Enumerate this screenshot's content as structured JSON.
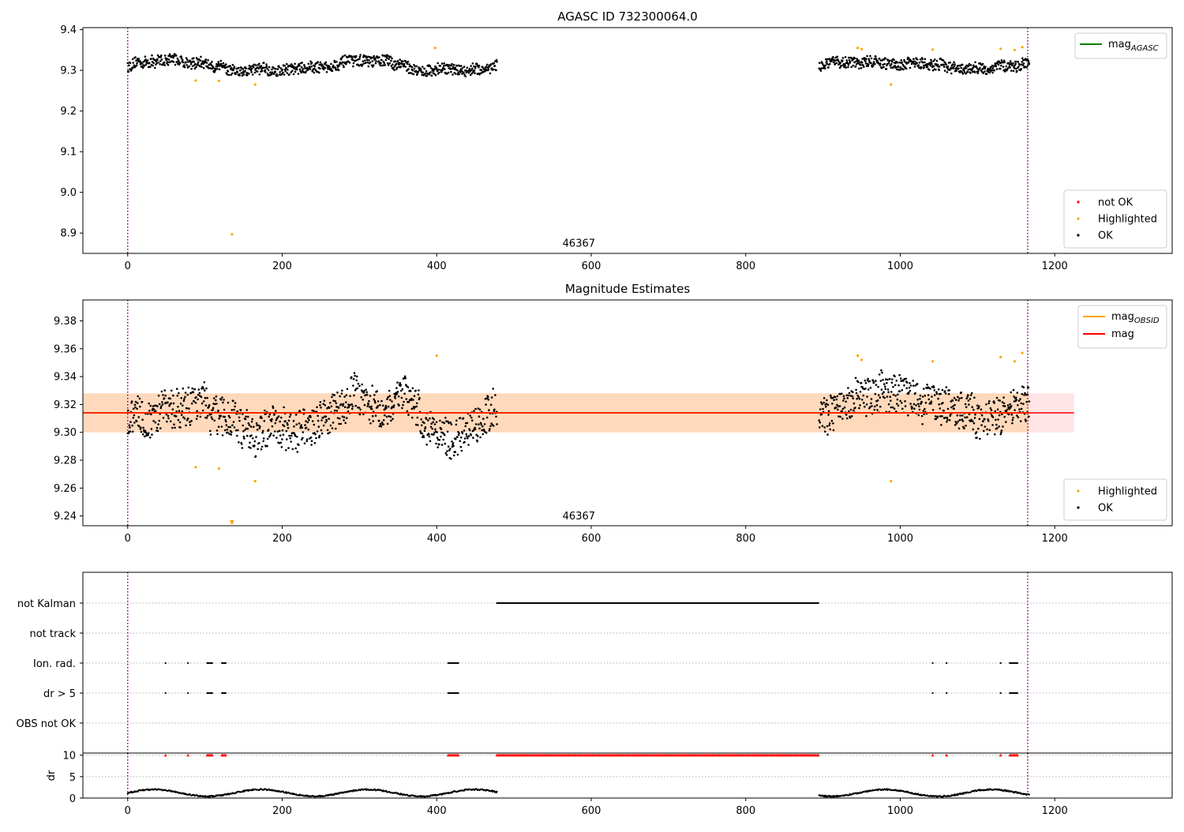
{
  "chart_data": [
    {
      "type": "scatter",
      "title": "AGASC ID 732300064.0",
      "xlim": [
        -58,
        1352
      ],
      "ylim": [
        8.85,
        9.405
      ],
      "xticks": [
        0,
        200,
        400,
        600,
        800,
        1000,
        1200
      ],
      "yticks": [
        8.9,
        9.0,
        9.1,
        9.2,
        9.3,
        9.4
      ],
      "vlines": [
        0,
        1165
      ],
      "annotation": {
        "text": "46367",
        "x": 584,
        "y": 8.865
      },
      "legend_lines": [
        {
          "label": "mag",
          "sub": "AGASC",
          "color": "#008000"
        }
      ],
      "legend_points": [
        {
          "label": "not OK",
          "color": "#ff0000"
        },
        {
          "label": "Highlighted",
          "color": "#ffa500"
        },
        {
          "label": "OK",
          "color": "#000000"
        }
      ],
      "ok_series": {
        "color": "#000000",
        "segments": [
          {
            "x_start": 0,
            "x_end": 478,
            "mean": 9.31,
            "amp": 0.03
          },
          {
            "x_start": 895,
            "x_end": 1167,
            "mean": 9.315,
            "amp": 0.03
          }
        ]
      },
      "highlighted_points": [
        {
          "x": 88,
          "y": 9.275
        },
        {
          "x": 118,
          "y": 9.274
        },
        {
          "x": 135,
          "y": 8.897
        },
        {
          "x": 165,
          "y": 9.265
        },
        {
          "x": 398,
          "y": 9.355
        },
        {
          "x": 945,
          "y": 9.355
        },
        {
          "x": 950,
          "y": 9.352
        },
        {
          "x": 988,
          "y": 9.265
        },
        {
          "x": 1042,
          "y": 9.351
        },
        {
          "x": 1130,
          "y": 9.353
        },
        {
          "x": 1148,
          "y": 9.35
        },
        {
          "x": 1158,
          "y": 9.357
        }
      ]
    },
    {
      "type": "scatter",
      "title": "Magnitude Estimates",
      "xlim": [
        -58,
        1352
      ],
      "ylim": [
        9.233,
        9.395
      ],
      "xticks": [
        0,
        200,
        400,
        600,
        800,
        1000,
        1200
      ],
      "yticks": [
        9.24,
        9.26,
        9.28,
        9.3,
        9.32,
        9.34,
        9.36,
        9.38
      ],
      "vlines": [
        0,
        1165
      ],
      "annotation": {
        "text": "46367",
        "x": 584,
        "y": 9.238
      },
      "mag": {
        "value": 9.314,
        "band": [
          9.3,
          9.328
        ],
        "color": "#ff0000"
      },
      "mag_obsid": {
        "value": 9.314,
        "band": [
          9.3,
          9.328
        ],
        "x_end": 1167,
        "color": "#ffa500"
      },
      "band_x_end": 1225,
      "legend_lines": [
        {
          "label": "mag",
          "sub": "OBSID",
          "color": "#ffa500"
        },
        {
          "label": "mag",
          "sub": "",
          "color": "#ff0000"
        }
      ],
      "legend_points": [
        {
          "label": "Highlighted",
          "color": "#ffa500"
        },
        {
          "label": "OK",
          "color": "#000000"
        }
      ],
      "ok_series": {
        "color": "#000000",
        "segments": [
          {
            "x_start": 0,
            "x_end": 478,
            "mean": 9.31,
            "amp": 0.03
          },
          {
            "x_start": 895,
            "x_end": 1167,
            "mean": 9.315,
            "amp": 0.03
          }
        ]
      },
      "highlighted_points": [
        {
          "x": 88,
          "y": 9.275
        },
        {
          "x": 118,
          "y": 9.274
        },
        {
          "x": 135,
          "y": 9.235
        },
        {
          "x": 165,
          "y": 9.265
        },
        {
          "x": 400,
          "y": 9.355
        },
        {
          "x": 945,
          "y": 9.355
        },
        {
          "x": 950,
          "y": 9.352
        },
        {
          "x": 988,
          "y": 9.265
        },
        {
          "x": 1042,
          "y": 9.351
        },
        {
          "x": 1130,
          "y": 9.354
        },
        {
          "x": 1148,
          "y": 9.351
        },
        {
          "x": 1158,
          "y": 9.357
        }
      ]
    },
    {
      "type": "scatter",
      "title": "",
      "xlim": [
        -58,
        1352
      ],
      "categories": [
        "not Kalman",
        "not track",
        "Ion. rad.",
        "dr > 5",
        "OBS not OK"
      ],
      "vlines": [
        0,
        1165
      ],
      "flags": {
        "not Kalman": [
          [
            478,
            895
          ]
        ],
        "not track": [],
        "Ion. rad.": [
          [
            49,
            49
          ],
          [
            78,
            78
          ],
          [
            103,
            110
          ],
          [
            122,
            128
          ],
          [
            415,
            428
          ],
          [
            1042,
            1042
          ],
          [
            1060,
            1060
          ],
          [
            1130,
            1130
          ],
          [
            1142,
            1152
          ]
        ],
        "dr > 5": [
          [
            49,
            49
          ],
          [
            78,
            78
          ],
          [
            103,
            110
          ],
          [
            122,
            128
          ],
          [
            415,
            428
          ],
          [
            1042,
            1042
          ],
          [
            1060,
            1060
          ],
          [
            1130,
            1130
          ],
          [
            1142,
            1152
          ]
        ],
        "OBS not OK": []
      }
    },
    {
      "type": "scatter",
      "title": "",
      "ylabel": "dr",
      "xlim": [
        -58,
        1352
      ],
      "ylim": [
        0,
        10.5
      ],
      "xticks": [
        0,
        200,
        400,
        600,
        800,
        1000,
        1200
      ],
      "yticks": [
        0,
        5,
        10
      ],
      "vlines": [
        0,
        1165
      ],
      "clip_value": 10,
      "clip_color": "#ff0000",
      "dr_series": {
        "color": "#000000",
        "segments": [
          {
            "x_start": 0,
            "x_end": 478,
            "mean": 1.2
          },
          {
            "x_start": 895,
            "x_end": 1167,
            "mean": 1.2
          }
        ]
      }
    }
  ]
}
